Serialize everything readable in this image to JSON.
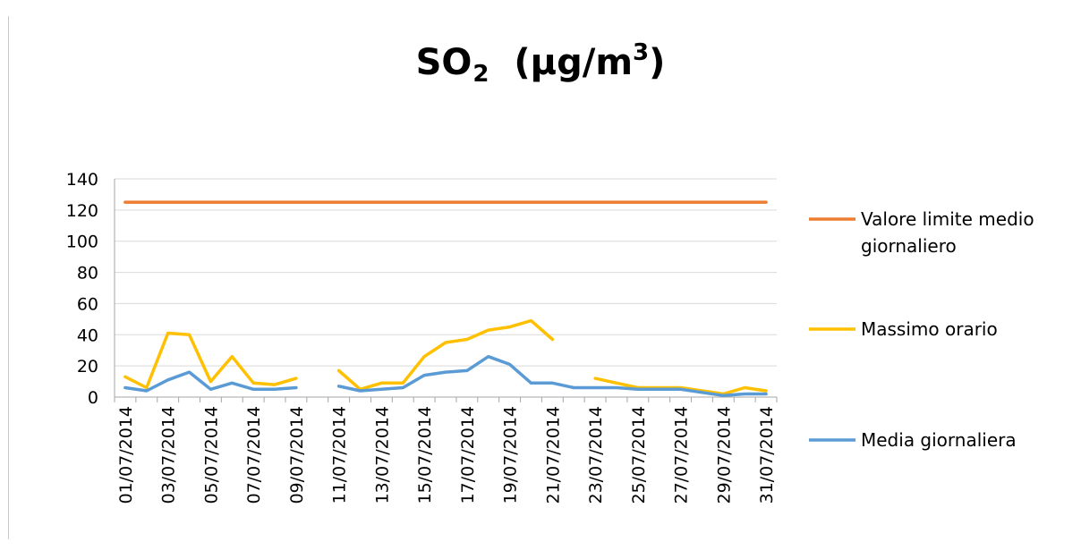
{
  "chart_data": {
    "type": "line",
    "title": {
      "main": "SO",
      "sub": "2",
      "units_pre": "(μg/m",
      "units_sup": "3",
      "units_post": ")"
    },
    "xlabel": "",
    "ylabel": "",
    "ylim": [
      0,
      140
    ],
    "yticks": [
      0,
      20,
      40,
      60,
      80,
      100,
      120,
      140
    ],
    "grid": true,
    "legend_position": "right",
    "x": [
      "01/07/2014",
      "02/07/2014",
      "03/07/2014",
      "04/07/2014",
      "05/07/2014",
      "06/07/2014",
      "07/07/2014",
      "08/07/2014",
      "09/07/2014",
      "10/07/2014",
      "11/07/2014",
      "12/07/2014",
      "13/07/2014",
      "14/07/2014",
      "15/07/2014",
      "16/07/2014",
      "17/07/2014",
      "18/07/2014",
      "19/07/2014",
      "20/07/2014",
      "21/07/2014",
      "22/07/2014",
      "23/07/2014",
      "24/07/2014",
      "25/07/2014",
      "26/07/2014",
      "27/07/2014",
      "28/07/2014",
      "29/07/2014",
      "30/07/2014",
      "31/07/2014"
    ],
    "xtick_labels": [
      "01/07/2014",
      "03/07/2014",
      "05/07/2014",
      "07/07/2014",
      "09/07/2014",
      "11/07/2014",
      "13/07/2014",
      "15/07/2014",
      "17/07/2014",
      "19/07/2014",
      "21/07/2014",
      "23/07/2014",
      "25/07/2014",
      "27/07/2014",
      "29/07/2014",
      "31/07/2014"
    ],
    "series": [
      {
        "name": "Valore limite medio giornaliero",
        "name_lines": [
          "Valore limite medio",
          "giornaliero"
        ],
        "color": "#ed7d31",
        "values": [
          125,
          125,
          125,
          125,
          125,
          125,
          125,
          125,
          125,
          125,
          125,
          125,
          125,
          125,
          125,
          125,
          125,
          125,
          125,
          125,
          125,
          125,
          125,
          125,
          125,
          125,
          125,
          125,
          125,
          125,
          125
        ]
      },
      {
        "name": "Massimo orario",
        "name_lines": [
          "Massimo orario"
        ],
        "color": "#ffc000",
        "values": [
          13,
          6,
          41,
          40,
          10,
          26,
          9,
          8,
          12,
          null,
          17,
          5,
          9,
          9,
          26,
          35,
          37,
          43,
          45,
          49,
          37,
          null,
          12,
          9,
          6,
          6,
          6,
          4,
          2,
          6,
          4
        ]
      },
      {
        "name": "Media giornaliera",
        "name_lines": [
          "Media giornaliera"
        ],
        "color": "#5b9bd5",
        "values": [
          6,
          4,
          11,
          16,
          5,
          9,
          5,
          5,
          6,
          null,
          7,
          4,
          5,
          6,
          14,
          16,
          17,
          26,
          21,
          9,
          9,
          6,
          6,
          6,
          5,
          5,
          5,
          3,
          1,
          2,
          2
        ]
      }
    ]
  }
}
